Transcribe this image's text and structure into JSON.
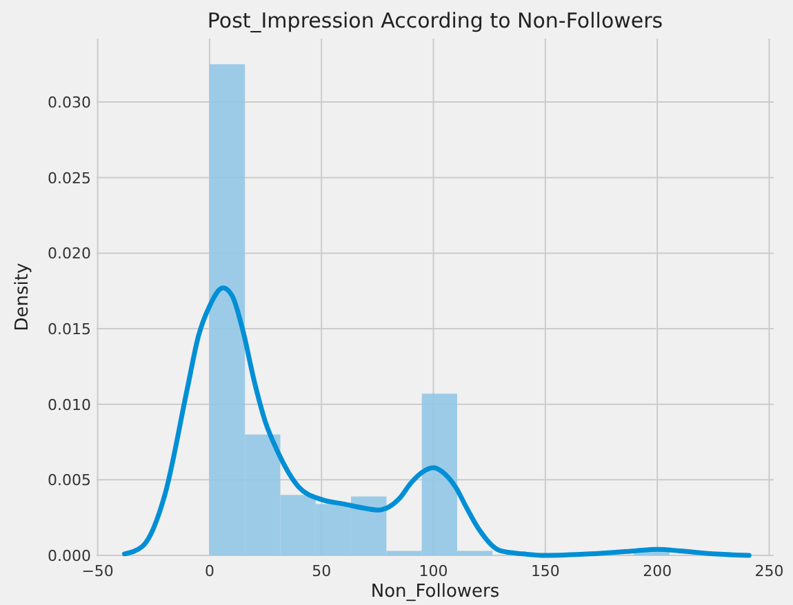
{
  "chart_data": {
    "type": "histogram",
    "title": "Post_Impression According to Non-Followers",
    "xlabel": "Non_Followers",
    "ylabel": "Density",
    "bins": [
      0,
      15.8,
      31.6,
      47.4,
      63.2,
      79,
      94.8,
      110.6,
      126.4,
      142.2,
      158,
      173.8,
      189.6,
      205.4
    ],
    "values": [
      0.0325,
      0.008,
      0.004,
      0.0034,
      0.0039,
      0.0003,
      0.0107,
      0.0003,
      0,
      0,
      0,
      0,
      0.0004
    ],
    "color": "#92c6e6",
    "series": [
      {
        "type": "line",
        "color": "#008fd5",
        "x": [
          -38,
          -30,
          -20,
          -10,
          -5,
          0,
          6,
          10,
          15,
          20,
          25,
          30,
          40,
          50,
          60,
          70,
          75,
          80,
          85,
          90,
          95,
          100,
          105,
          110,
          115,
          120,
          130,
          140,
          150,
          170,
          190,
          200,
          210,
          225,
          241
        ],
        "values": [
          0.0001,
          0.0006,
          0.004,
          0.011,
          0.0145,
          0.0165,
          0.0177,
          0.0172,
          0.0148,
          0.0115,
          0.0088,
          0.007,
          0.0045,
          0.0037,
          0.0034,
          0.0031,
          0.003,
          0.0032,
          0.0038,
          0.0048,
          0.0055,
          0.0058,
          0.0054,
          0.0045,
          0.0031,
          0.0018,
          0.0003,
          0.0001,
          0,
          0.0001,
          0.0003,
          0.0004,
          0.0003,
          0.0001,
          0
        ]
      }
    ],
    "xlim": [
      -50.5,
      252
    ],
    "ylim": [
      0,
      0.0342
    ],
    "xticks": [
      -50,
      0,
      50,
      100,
      150,
      200,
      250
    ],
    "yticks": [
      {
        "value": 0,
        "label": "0.000"
      },
      {
        "value": 0.005,
        "label": "0.005"
      },
      {
        "value": 0.01,
        "label": "0.010"
      },
      {
        "value": 0.015,
        "label": "0.015"
      },
      {
        "value": 0.02,
        "label": "0.020"
      },
      {
        "value": 0.025,
        "label": "0.025"
      },
      {
        "value": 0.03,
        "label": "0.030"
      }
    ],
    "grid": true
  }
}
